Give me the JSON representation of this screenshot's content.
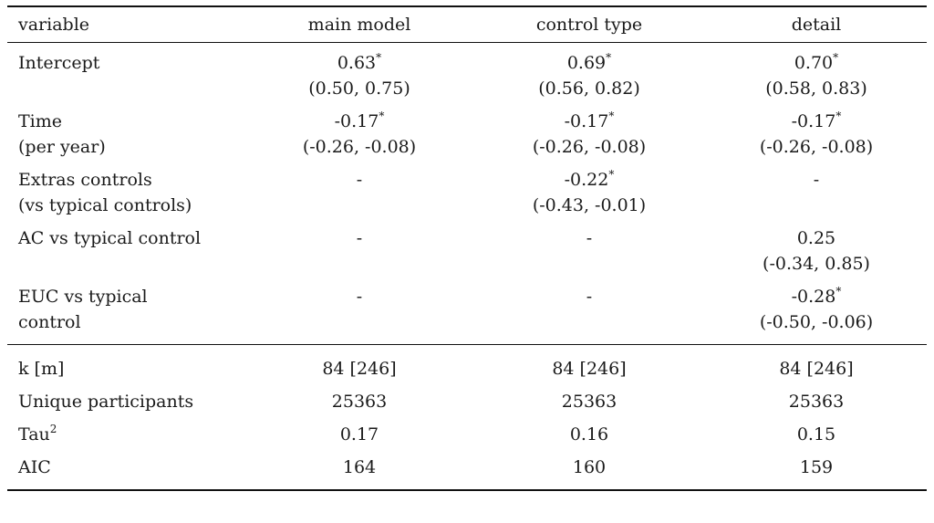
{
  "table": {
    "headers": [
      "variable",
      "main model",
      "control type",
      "detail"
    ],
    "rows": [
      {
        "label_lines": [
          "Intercept"
        ],
        "cells": [
          {
            "est": "0.63",
            "star": "*",
            "ci": "(0.50, 0.75)"
          },
          {
            "est": "0.69",
            "star": "*",
            "ci": "(0.56, 0.82)"
          },
          {
            "est": "0.70",
            "star": "*",
            "ci": "(0.58, 0.83)"
          }
        ]
      },
      {
        "label_lines": [
          "Time",
          "(per year)"
        ],
        "cells": [
          {
            "est": "-0.17",
            "star": "*",
            "ci": "(-0.26, -0.08)"
          },
          {
            "est": "-0.17",
            "star": "*",
            "ci": "(-0.26, -0.08)"
          },
          {
            "est": "-0.17",
            "star": "*",
            "ci": "(-0.26, -0.08)"
          }
        ]
      },
      {
        "label_lines": [
          "Extras controls",
          "(vs typical controls)"
        ],
        "cells": [
          {
            "est": "-",
            "star": "",
            "ci": ""
          },
          {
            "est": "-0.22",
            "star": "*",
            "ci": "(-0.43, -0.01)"
          },
          {
            "est": "-",
            "star": "",
            "ci": ""
          }
        ]
      },
      {
        "label_lines": [
          "AC vs typical control"
        ],
        "cells": [
          {
            "est": "-",
            "star": "",
            "ci": ""
          },
          {
            "est": "-",
            "star": "",
            "ci": ""
          },
          {
            "est": "0.25",
            "star": "",
            "ci": "(-0.34, 0.85)"
          }
        ]
      },
      {
        "label_lines": [
          "EUC vs typical",
          "control"
        ],
        "cells": [
          {
            "est": "-",
            "star": "",
            "ci": ""
          },
          {
            "est": "-",
            "star": "",
            "ci": ""
          },
          {
            "est": "-0.28",
            "star": "*",
            "ci": "(-0.50, -0.06)"
          }
        ]
      }
    ],
    "stats": [
      {
        "label": "k [m]",
        "label_sup": "",
        "values": [
          "84 [246]",
          "84 [246]",
          "84 [246]"
        ]
      },
      {
        "label": "Unique participants",
        "label_sup": "",
        "values": [
          "25363",
          "25363",
          "25363"
        ]
      },
      {
        "label": "Tau",
        "label_sup": "2",
        "values": [
          "0.17",
          "0.16",
          "0.15"
        ]
      },
      {
        "label": "AIC",
        "label_sup": "",
        "values": [
          "164",
          "160",
          "159"
        ]
      }
    ]
  }
}
